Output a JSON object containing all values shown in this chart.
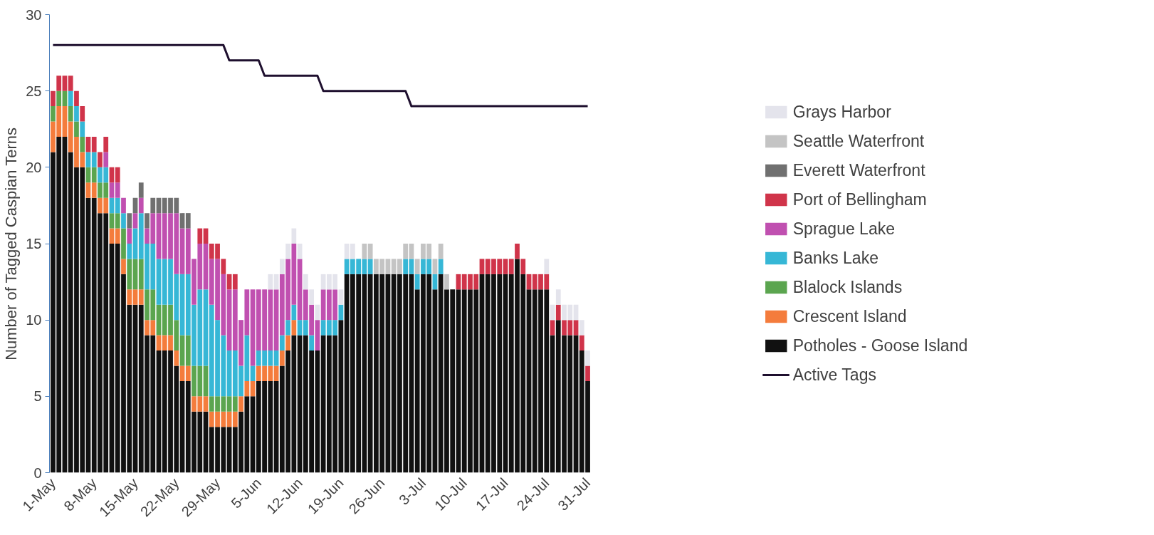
{
  "chart_data": {
    "type": "bar",
    "stacked": true,
    "ylabel": "Number of Tagged Caspian Terns",
    "ylim": [
      0,
      30
    ],
    "yticks": [
      0,
      5,
      10,
      15,
      20,
      25,
      30
    ],
    "legend": "right",
    "categories": [
      "1-May",
      null,
      null,
      null,
      null,
      null,
      null,
      "8-May",
      null,
      null,
      null,
      null,
      null,
      null,
      "15-May",
      null,
      null,
      null,
      null,
      null,
      null,
      "22-May",
      null,
      null,
      null,
      null,
      null,
      null,
      "29-May",
      null,
      null,
      null,
      null,
      null,
      null,
      "5-Jun",
      null,
      null,
      null,
      null,
      null,
      null,
      "12-Jun",
      null,
      null,
      null,
      null,
      null,
      null,
      "19-Jun",
      null,
      null,
      null,
      null,
      null,
      null,
      "26-Jun",
      null,
      null,
      null,
      null,
      null,
      null,
      "3-Jul",
      null,
      null,
      null,
      null,
      null,
      null,
      "10-Jul",
      null,
      null,
      null,
      null,
      null,
      null,
      "17-Jul",
      null,
      null,
      null,
      null,
      null,
      null,
      "24-Jul",
      null,
      null,
      null,
      null,
      null,
      null,
      "31-Jul"
    ],
    "series": [
      {
        "name": "Potholes - Goose Island",
        "color": "#111111",
        "values": [
          21,
          22,
          22,
          21,
          20,
          20,
          18,
          18,
          17,
          17,
          15,
          15,
          13,
          11,
          11,
          11,
          9,
          9,
          8,
          8,
          8,
          7,
          6,
          6,
          4,
          4,
          4,
          3,
          3,
          3,
          3,
          3,
          4,
          5,
          5,
          6,
          6,
          6,
          6,
          7,
          8,
          9,
          9,
          9,
          8,
          8,
          9,
          9,
          9,
          10,
          13,
          13,
          13,
          13,
          13,
          13,
          13,
          13,
          13,
          13,
          13,
          13,
          12,
          13,
          13,
          12,
          13,
          12,
          12,
          12,
          12,
          12,
          12,
          13,
          13,
          13,
          13,
          13,
          13,
          14,
          13,
          12,
          12,
          12,
          12,
          9,
          10,
          9,
          9,
          9,
          8,
          6
        ]
      },
      {
        "name": "Crescent Island",
        "color": "#f47c3c",
        "values": [
          2,
          2,
          2,
          2,
          2,
          1,
          1,
          1,
          1,
          1,
          1,
          1,
          1,
          1,
          1,
          1,
          1,
          1,
          1,
          1,
          1,
          1,
          1,
          1,
          1,
          1,
          1,
          1,
          1,
          1,
          1,
          1,
          1,
          1,
          1,
          1,
          1,
          1,
          1,
          1,
          1,
          1,
          null,
          null,
          null,
          null,
          null,
          null,
          null,
          null,
          null,
          null,
          null,
          null,
          null,
          null,
          null,
          null,
          null,
          null,
          null,
          null,
          null,
          null,
          null,
          null,
          null,
          null,
          null,
          null,
          null,
          null,
          null,
          null,
          null,
          null,
          null,
          null,
          null,
          null,
          null,
          null,
          null,
          null,
          null,
          null,
          null,
          null,
          null,
          null,
          null,
          null
        ]
      },
      {
        "name": "Blalock Islands",
        "color": "#5ba54f",
        "values": [
          1,
          1,
          1,
          1,
          1,
          1,
          1,
          1,
          1,
          1,
          1,
          1,
          2,
          2,
          2,
          2,
          2,
          2,
          2,
          2,
          2,
          2,
          2,
          2,
          2,
          2,
          2,
          1,
          1,
          1,
          1,
          1,
          null,
          null,
          null,
          null,
          null,
          null,
          null,
          null,
          null,
          null,
          null,
          null,
          null,
          null,
          null,
          null,
          null,
          null,
          null,
          null,
          null,
          null,
          null,
          null,
          null,
          null,
          null,
          null,
          null,
          null,
          null,
          null,
          null,
          null,
          null,
          null,
          null,
          null,
          null,
          null,
          null,
          null,
          null,
          null,
          null,
          null,
          null,
          null,
          null,
          null,
          null,
          null,
          null,
          null,
          null,
          null,
          null,
          null,
          null,
          null
        ]
      },
      {
        "name": "Banks Lake",
        "color": "#36b7d6",
        "values": [
          null,
          null,
          null,
          1,
          1,
          1,
          1,
          1,
          1,
          1,
          1,
          1,
          1,
          1,
          2,
          3,
          3,
          3,
          3,
          3,
          3,
          3,
          4,
          4,
          4,
          5,
          5,
          6,
          5,
          4,
          3,
          3,
          2,
          3,
          1,
          1,
          1,
          1,
          1,
          1,
          1,
          1,
          1,
          1,
          1,
          null,
          1,
          1,
          1,
          1,
          1,
          1,
          1,
          1,
          1,
          null,
          null,
          null,
          null,
          null,
          1,
          1,
          1,
          1,
          1,
          1,
          1,
          null,
          null,
          null,
          null,
          null,
          null,
          null,
          null,
          null,
          null,
          null,
          null,
          null,
          null,
          null,
          null,
          null,
          null,
          null,
          null,
          null,
          null,
          null,
          null,
          null
        ]
      },
      {
        "name": "Sprague Lake",
        "color": "#c050b0",
        "values": [
          null,
          null,
          null,
          null,
          null,
          null,
          null,
          null,
          null,
          1,
          1,
          1,
          1,
          1,
          1,
          1,
          1,
          2,
          3,
          3,
          3,
          4,
          3,
          3,
          3,
          3,
          3,
          3,
          4,
          4,
          4,
          4,
          3,
          3,
          5,
          4,
          4,
          4,
          4,
          4,
          4,
          4,
          4,
          2,
          2,
          2,
          2,
          2,
          2,
          null,
          null,
          null,
          null,
          null,
          null,
          null,
          null,
          null,
          null,
          null,
          null,
          null,
          null,
          null,
          null,
          null,
          null,
          null,
          null,
          null,
          null,
          null,
          null,
          null,
          null,
          null,
          null,
          null,
          null,
          null,
          null,
          null,
          null,
          null,
          null,
          null,
          null,
          null,
          null,
          null,
          null,
          null
        ]
      },
      {
        "name": "Port of Bellingham",
        "color": "#d0344a",
        "values": [
          1,
          1,
          1,
          1,
          1,
          1,
          1,
          1,
          1,
          1,
          1,
          1,
          null,
          null,
          null,
          null,
          null,
          null,
          null,
          null,
          null,
          null,
          null,
          null,
          null,
          1,
          1,
          1,
          1,
          1,
          1,
          1,
          null,
          null,
          null,
          null,
          null,
          null,
          null,
          null,
          null,
          null,
          null,
          null,
          null,
          null,
          null,
          null,
          null,
          null,
          null,
          null,
          null,
          null,
          null,
          null,
          null,
          null,
          null,
          null,
          null,
          null,
          null,
          null,
          null,
          null,
          null,
          null,
          null,
          1,
          1,
          1,
          1,
          1,
          1,
          1,
          1,
          1,
          1,
          1,
          1,
          1,
          1,
          1,
          1,
          1,
          1,
          1,
          1,
          1,
          1,
          1
        ]
      },
      {
        "name": "Everett Waterfront",
        "color": "#707070",
        "values": [
          null,
          null,
          null,
          null,
          null,
          null,
          null,
          null,
          null,
          null,
          null,
          null,
          null,
          1,
          1,
          1,
          1,
          1,
          1,
          1,
          1,
          1,
          1,
          1,
          null,
          null,
          null,
          null,
          null,
          null,
          null,
          null,
          null,
          null,
          null,
          null,
          null,
          null,
          null,
          null,
          null,
          null,
          null,
          null,
          null,
          null,
          null,
          null,
          null,
          null,
          null,
          null,
          null,
          null,
          null,
          null,
          null,
          null,
          null,
          null,
          null,
          null,
          null,
          null,
          null,
          null,
          null,
          null,
          null,
          null,
          null,
          null,
          null,
          null,
          null,
          null,
          null,
          null,
          null,
          null,
          null,
          null,
          null,
          null,
          null,
          null,
          null,
          null,
          null,
          null,
          null,
          null
        ]
      },
      {
        "name": "Seattle Waterfront",
        "color": "#c4c4c4",
        "values": [
          null,
          null,
          null,
          null,
          null,
          null,
          null,
          null,
          null,
          null,
          null,
          null,
          null,
          null,
          null,
          null,
          null,
          null,
          null,
          null,
          null,
          null,
          null,
          null,
          null,
          null,
          null,
          null,
          null,
          null,
          null,
          null,
          null,
          null,
          null,
          null,
          null,
          null,
          null,
          null,
          null,
          null,
          null,
          null,
          null,
          null,
          null,
          null,
          null,
          null,
          null,
          null,
          null,
          1,
          1,
          1,
          1,
          1,
          1,
          1,
          1,
          1,
          1,
          1,
          1,
          1,
          1,
          1,
          null,
          null,
          null,
          null,
          null,
          null,
          null,
          null,
          null,
          null,
          null,
          null,
          null,
          null,
          null,
          null,
          null,
          null,
          null,
          null,
          null,
          null,
          null,
          null
        ]
      },
      {
        "name": "Grays Harbor",
        "color": "#e4e4ec",
        "values": [
          null,
          null,
          null,
          null,
          null,
          null,
          null,
          null,
          null,
          null,
          null,
          null,
          null,
          null,
          null,
          null,
          null,
          null,
          null,
          null,
          null,
          null,
          null,
          null,
          null,
          null,
          null,
          null,
          null,
          null,
          null,
          null,
          null,
          null,
          null,
          null,
          null,
          1,
          1,
          1,
          1,
          1,
          1,
          1,
          1,
          1,
          1,
          1,
          1,
          1,
          1,
          1,
          null,
          null,
          null,
          null,
          null,
          null,
          null,
          null,
          null,
          null,
          null,
          null,
          null,
          null,
          null,
          null,
          null,
          null,
          null,
          null,
          null,
          null,
          null,
          null,
          null,
          null,
          null,
          null,
          null,
          null,
          null,
          null,
          1,
          1,
          1,
          1,
          1,
          1,
          1,
          1
        ]
      },
      {
        "name": "Active Tags",
        "type": "line",
        "color": "#1e0f2e",
        "values": [
          28,
          28,
          28,
          28,
          28,
          28,
          28,
          28,
          28,
          28,
          28,
          28,
          28,
          28,
          28,
          28,
          28,
          28,
          28,
          28,
          28,
          28,
          28,
          28,
          28,
          28,
          28,
          28,
          28,
          28,
          27,
          27,
          27,
          27,
          27,
          27,
          26,
          26,
          26,
          26,
          26,
          26,
          26,
          26,
          26,
          26,
          25,
          25,
          25,
          25,
          25,
          25,
          25,
          25,
          25,
          25,
          25,
          25,
          25,
          25,
          25,
          24,
          24,
          24,
          24,
          24,
          24,
          24,
          24,
          24,
          24,
          24,
          24,
          24,
          24,
          24,
          24,
          24,
          24,
          24,
          24,
          24,
          24,
          24,
          24,
          24,
          24,
          24,
          24,
          24,
          24,
          24
        ]
      }
    ]
  }
}
